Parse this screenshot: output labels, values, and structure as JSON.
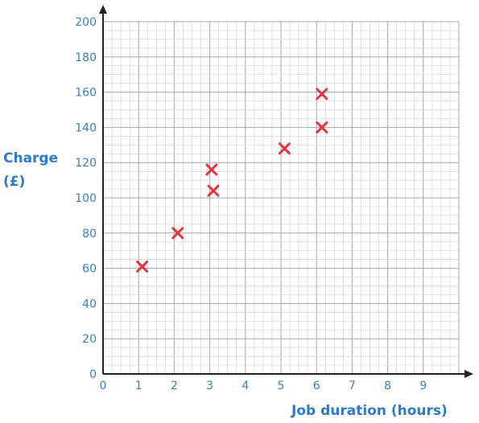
{
  "chart_data": {
    "type": "scatter",
    "title": "",
    "xlabel": "Job duration (hours)",
    "ylabel_line1": "Charge",
    "ylabel_line2": "(£)",
    "xlim": [
      0,
      10
    ],
    "ylim": [
      0,
      200
    ],
    "x_ticks": [
      "0",
      "1",
      "2",
      "3",
      "4",
      "5",
      "6",
      "7",
      "8",
      "9"
    ],
    "y_ticks": [
      "0",
      "20",
      "40",
      "60",
      "80",
      "100",
      "120",
      "140",
      "160",
      "180",
      "200"
    ],
    "grid": true,
    "points": [
      {
        "x": 1.1,
        "y": 61
      },
      {
        "x": 2.1,
        "y": 80
      },
      {
        "x": 3.1,
        "y": 104
      },
      {
        "x": 3.05,
        "y": 116
      },
      {
        "x": 5.1,
        "y": 128
      },
      {
        "x": 6.15,
        "y": 140
      },
      {
        "x": 6.15,
        "y": 159
      }
    ],
    "marker_color": "#e8343f",
    "axis_label_color": "#2f7ac8"
  }
}
